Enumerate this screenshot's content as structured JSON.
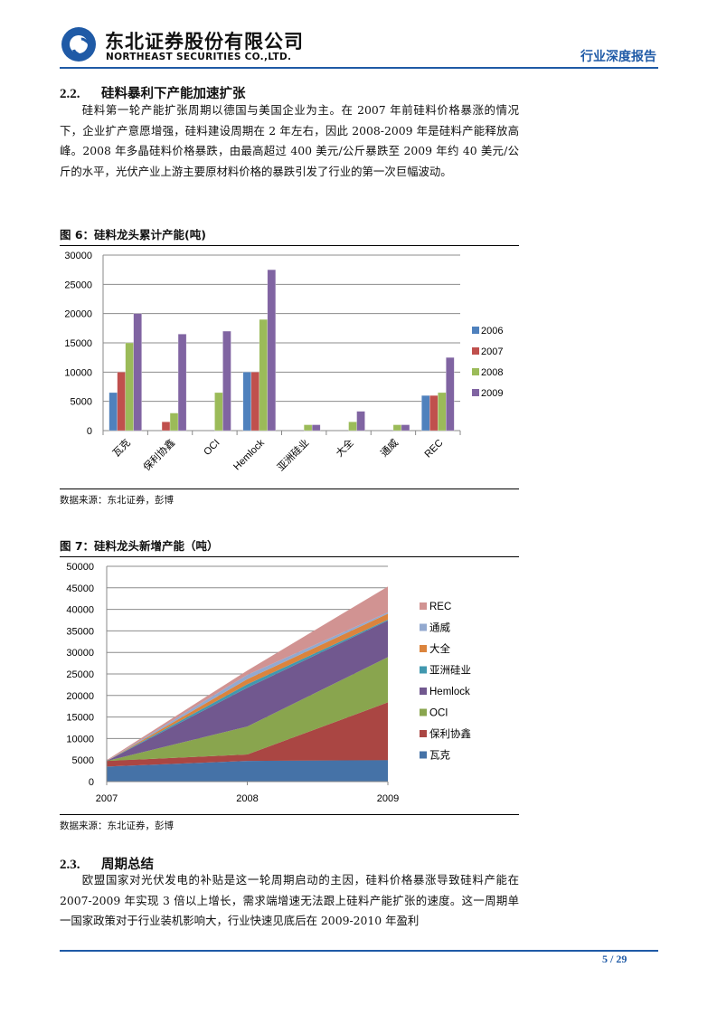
{
  "header": {
    "company_cn": "东北证券股份有限公司",
    "company_en": "NORTHEAST SECURITIES CO.,LTD.",
    "report_type": "行业深度报告"
  },
  "section_22": {
    "number": "2.2.",
    "title": "硅料暴利下产能加速扩张",
    "paragraph": "硅料第一轮产能扩张周期以德国与美国企业为主。在 2007 年前硅料价格暴涨的情况下，企业扩产意愿增强，硅料建设周期在 2 年左右，因此 2008-2009 年是硅料产能释放高峰。2008 年多晶硅料价格暴跌，由最高超过 400 美元/公斤暴跌至 2009 年约 40 美元/公斤的水平，光伏产业上游主要原材料价格的暴跌引发了行业的第一次巨幅波动。"
  },
  "figure6": {
    "title": "图 6：硅料龙头累计产能(吨)",
    "source": "数据来源：东北证券，彭博"
  },
  "figure7": {
    "title": "图 7：硅料龙头新增产能（吨）",
    "source": "数据来源：东北证券，彭博"
  },
  "section_23": {
    "number": "2.3.",
    "title": "周期总结",
    "paragraph": "欧盟国家对光伏发电的补贴是这一轮周期启动的主因，硅料价格暴涨导致硅料产能在 2007-2009 年实现 3 倍以上增长，需求端增速无法跟上硅料产能扩张的速度。这一周期单一国家政策对于行业装机影响大，行业快速见底后在 2009-2010 年盈利"
  },
  "footer": {
    "page": "5 / 29"
  },
  "chart_data": [
    {
      "type": "bar",
      "title": "硅料龙头累计产能(吨)",
      "categories": [
        "瓦克",
        "保利协鑫",
        "OCI",
        "Hemlock",
        "亚洲硅业",
        "大全",
        "通威",
        "REC"
      ],
      "series": [
        {
          "name": "2006",
          "color": "#4f81bd",
          "values": [
            6500,
            0,
            0,
            10000,
            0,
            0,
            0,
            6000
          ]
        },
        {
          "name": "2007",
          "color": "#c0504d",
          "values": [
            10000,
            1500,
            0,
            10000,
            0,
            0,
            0,
            6000
          ]
        },
        {
          "name": "2008",
          "color": "#9bbb59",
          "values": [
            15000,
            3000,
            6500,
            19000,
            1000,
            1500,
            1000,
            6500
          ]
        },
        {
          "name": "2009",
          "color": "#8064a2",
          "values": [
            20000,
            16500,
            17000,
            27500,
            1000,
            3300,
            1000,
            12500
          ]
        }
      ],
      "yticks": [
        0,
        5000,
        10000,
        15000,
        20000,
        25000,
        30000
      ],
      "ylim": [
        0,
        30000
      ],
      "xlabel": "",
      "ylabel": "",
      "grid": true,
      "legend_position": "right"
    },
    {
      "type": "area",
      "stacked": true,
      "title": "硅料龙头新增产能（吨）",
      "x": [
        "2007",
        "2008",
        "2009"
      ],
      "series": [
        {
          "name": "瓦克",
          "color": "#4572a7",
          "values": [
            3500,
            4800,
            5000
          ]
        },
        {
          "name": "保利协鑫",
          "color": "#aa4643",
          "values": [
            1300,
            1500,
            13400
          ]
        },
        {
          "name": "OCI",
          "color": "#89a54e",
          "values": [
            0,
            6500,
            10500
          ]
        },
        {
          "name": "Hemlock",
          "color": "#71588f",
          "values": [
            0,
            9000,
            8500
          ]
        },
        {
          "name": "亚洲硅业",
          "color": "#4198af",
          "values": [
            0,
            800,
            200
          ]
        },
        {
          "name": "大全",
          "color": "#db843d",
          "values": [
            0,
            1200,
            1400
          ]
        },
        {
          "name": "通威",
          "color": "#93a9cf",
          "values": [
            0,
            1000,
            300
          ]
        },
        {
          "name": "REC",
          "color": "#d19392",
          "values": [
            200,
            1000,
            6000
          ]
        }
      ],
      "yticks": [
        0,
        5000,
        10000,
        15000,
        20000,
        25000,
        30000,
        35000,
        40000,
        45000,
        50000
      ],
      "ylim": [
        0,
        50000
      ],
      "xlabel": "",
      "ylabel": "",
      "grid": true,
      "legend_position": "right"
    }
  ]
}
